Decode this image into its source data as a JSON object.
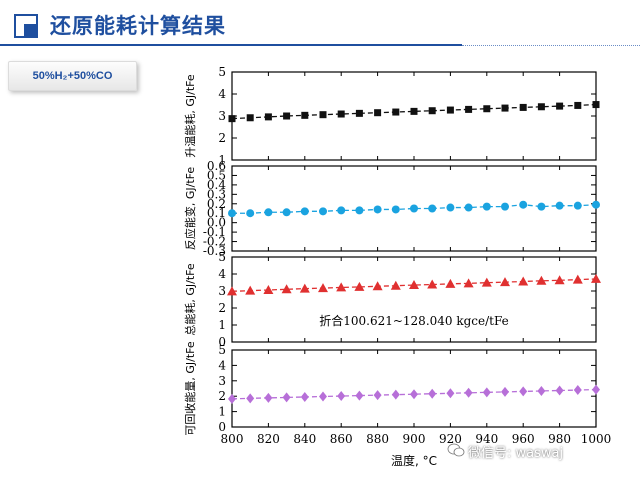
{
  "slide": {
    "title": "还原能耗计算结果",
    "condition_label": "50%H₂+50%CO",
    "watermark": "微信号: waswaj"
  },
  "colors": {
    "title_blue": "#1f4f9f",
    "black_series": "#111111",
    "blue_series": "#1aa3e0",
    "red_series": "#e03030",
    "purple_series": "#b76fd8"
  },
  "chart_data": {
    "type": "line",
    "xlabel": "温度, °C",
    "xlim": [
      800,
      1000
    ],
    "x_ticks": [
      800,
      820,
      840,
      860,
      880,
      900,
      920,
      940,
      960,
      980,
      1000
    ],
    "x": [
      800,
      810,
      820,
      830,
      840,
      850,
      860,
      870,
      880,
      890,
      900,
      910,
      920,
      930,
      940,
      950,
      960,
      970,
      980,
      990,
      1000
    ],
    "grid": false,
    "panels": [
      {
        "ylabel": "升温能耗, GJ/tFe",
        "ylim": [
          1,
          5
        ],
        "y_ticks": [
          1,
          2,
          3,
          4,
          5
        ],
        "marker": "square",
        "color": "#111111",
        "values": [
          2.88,
          2.92,
          2.96,
          3.0,
          3.03,
          3.06,
          3.09,
          3.12,
          3.15,
          3.18,
          3.21,
          3.24,
          3.27,
          3.3,
          3.33,
          3.36,
          3.39,
          3.42,
          3.45,
          3.48,
          3.52
        ]
      },
      {
        "ylabel": "反应能变, GJ/tFe",
        "ylim": [
          -0.3,
          0.6
        ],
        "y_ticks": [
          -0.3,
          -0.2,
          -0.1,
          0.0,
          0.1,
          0.2,
          0.3,
          0.4,
          0.5,
          0.6
        ],
        "y_tick_labels": [
          "-0.3",
          "-0.2",
          "-0.1",
          "0.0",
          "0.1",
          "0.2",
          "0.3",
          "0.4",
          "0.5",
          "0.6"
        ],
        "marker": "circle",
        "color": "#1aa3e0",
        "values": [
          0.1,
          0.1,
          0.11,
          0.11,
          0.12,
          0.12,
          0.13,
          0.13,
          0.14,
          0.14,
          0.15,
          0.15,
          0.16,
          0.16,
          0.17,
          0.17,
          0.19,
          0.17,
          0.18,
          0.18,
          0.19
        ]
      },
      {
        "ylabel": "总能耗, GJ/tFe",
        "ylim": [
          0,
          5
        ],
        "y_ticks": [
          0,
          1,
          2,
          3,
          4,
          5
        ],
        "marker": "triangle",
        "color": "#e03030",
        "values": [
          2.98,
          3.02,
          3.06,
          3.1,
          3.14,
          3.17,
          3.21,
          3.24,
          3.28,
          3.31,
          3.35,
          3.38,
          3.42,
          3.45,
          3.49,
          3.52,
          3.56,
          3.6,
          3.63,
          3.67,
          3.71
        ],
        "annotation": "折合100.621~128.040 kgce/tFe"
      },
      {
        "ylabel": "可回收能量, GJ/tFe",
        "ylim": [
          0,
          5
        ],
        "y_ticks": [
          0,
          1,
          2,
          3,
          4,
          5
        ],
        "marker": "diamond",
        "color": "#b76fd8",
        "values": [
          1.83,
          1.86,
          1.89,
          1.92,
          1.95,
          1.98,
          2.01,
          2.04,
          2.07,
          2.1,
          2.13,
          2.16,
          2.19,
          2.22,
          2.25,
          2.28,
          2.31,
          2.34,
          2.37,
          2.4,
          2.43
        ]
      }
    ]
  }
}
